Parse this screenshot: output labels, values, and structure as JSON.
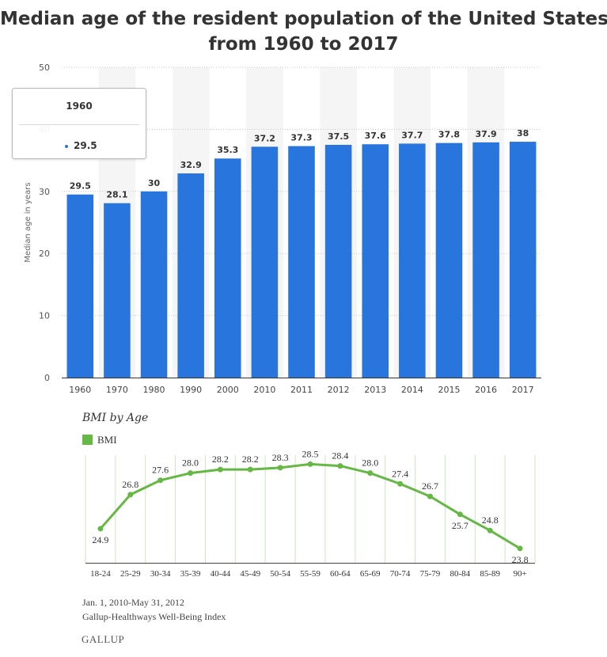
{
  "colors": {
    "bar": "#2876dd",
    "bmi_line": "#64b843",
    "title": "#333333",
    "band": "#f5f5f5"
  },
  "title": {
    "line1": "Median age of the resident population of the United States",
    "line2": "from 1960 to 2017"
  },
  "tooltip": {
    "year": "1960",
    "value": "29.5"
  },
  "bmi": {
    "title": "BMI by Age",
    "legend": "BMI",
    "source_line1": "Jan. 1, 2010-May 31, 2012",
    "source_line2": "Gallup-Healthways Well-Being Index",
    "logo": "GALLUP"
  },
  "chart_data": [
    {
      "type": "bar",
      "title": "Median age of the resident population of the United States from 1960 to 2017",
      "ylabel": "Median age in years",
      "xlabel": "",
      "categories": [
        "1960",
        "1970",
        "1980",
        "1990",
        "2000",
        "2010",
        "2011",
        "2012",
        "2013",
        "2014",
        "2015",
        "2016",
        "2017"
      ],
      "values": [
        29.5,
        28.1,
        30,
        32.9,
        35.3,
        37.2,
        37.3,
        37.5,
        37.6,
        37.7,
        37.8,
        37.9,
        38
      ],
      "value_labels": [
        "29.5",
        "28.1",
        "30",
        "32.9",
        "35.3",
        "37.2",
        "37.3",
        "37.5",
        "37.6",
        "37.7",
        "37.8",
        "37.9",
        "38"
      ],
      "ylim": [
        0,
        50
      ],
      "yticks": [
        0,
        10,
        20,
        30,
        40,
        50
      ],
      "ytick_labels": [
        "0",
        "10",
        "20",
        "30",
        "40",
        "50"
      ],
      "grid": true
    },
    {
      "type": "line",
      "title": "BMI by Age",
      "categories": [
        "18-24",
        "25-29",
        "30-34",
        "35-39",
        "40-44",
        "45-49",
        "50-54",
        "55-59",
        "60-64",
        "65-69",
        "70-74",
        "75-79",
        "80-84",
        "85-89",
        "90+"
      ],
      "series": [
        {
          "name": "BMI",
          "values": [
            24.9,
            26.8,
            27.6,
            28.0,
            28.2,
            28.2,
            28.3,
            28.5,
            28.4,
            28.0,
            27.4,
            26.7,
            25.7,
            24.8,
            23.8
          ]
        }
      ],
      "value_labels": [
        "24.9",
        "26.8",
        "27.6",
        "28.0",
        "28.2",
        "28.2",
        "28.3",
        "28.5",
        "28.4",
        "28.0",
        "27.4",
        "26.7",
        "25.7",
        "24.8",
        "23.8"
      ],
      "label_positions": [
        "below",
        "above",
        "above",
        "above",
        "above",
        "above",
        "above",
        "above",
        "above",
        "above",
        "above",
        "above",
        "below",
        "above",
        "below"
      ],
      "ylim": [
        23,
        29
      ],
      "grid": true
    }
  ]
}
